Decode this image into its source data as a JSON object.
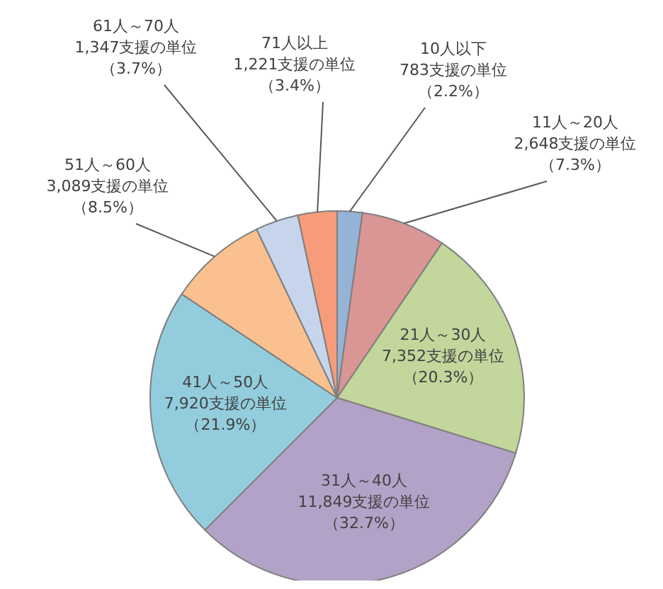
{
  "chart_data": {
    "type": "pie",
    "categories": [
      "10人以下",
      "11人～20人",
      "21人～30人",
      "31人～40人",
      "41人～50人",
      "51人～60人",
      "61人～70人",
      "71人以上"
    ],
    "values": [
      783,
      2648,
      7352,
      11849,
      7920,
      3089,
      1347,
      1221
    ],
    "value_labels": [
      "783支援の単位（2.2%）",
      "2,648支援の単位（7.3%）",
      "7,352支援の単位（20.3%）",
      "11,849支援の単位（32.7%）",
      "7,920支援の単位（21.9%）",
      "3,089支援の単位（8.5%）",
      "1,347支援の単位（3.7%）",
      "1,221支援の単位（3.4%）"
    ],
    "colors": [
      "#95b3d7",
      "#d99694",
      "#c3d69b",
      "#b3a2c7",
      "#93cddd",
      "#fac090",
      "#c6d5ec",
      "#f79c7a"
    ]
  }
}
